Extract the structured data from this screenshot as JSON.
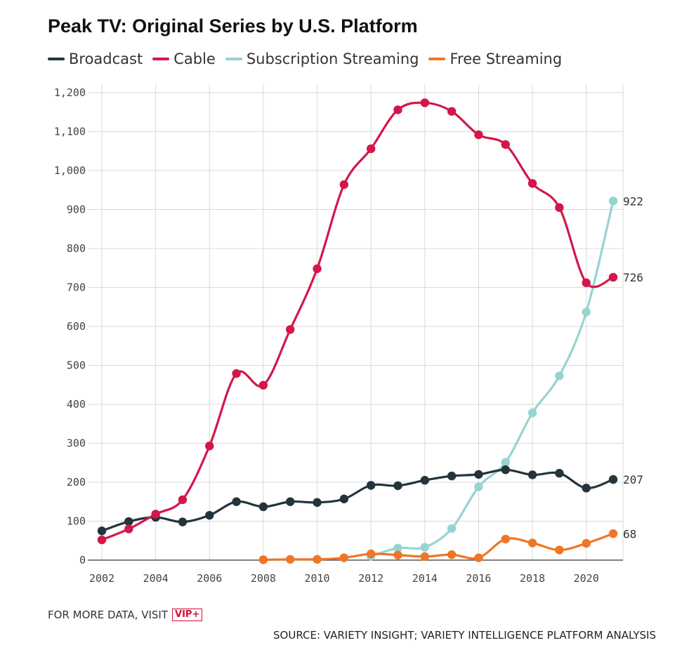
{
  "colors": {
    "broadcast": "#24343c",
    "cable": "#d3174a",
    "subscription": "#96d4d2",
    "free": "#ef7626",
    "grid": "#d9d9d9",
    "axis": "#333333"
  },
  "footer": {
    "more_data": "FOR MORE DATA, VISIT",
    "badge": "VIP+",
    "source": "SOURCE: VARIETY INSIGHT; VARIETY INTELLIGENCE PLATFORM ANALYSIS"
  },
  "chart_data": {
    "type": "line",
    "title": "Peak TV: Original Series by U.S. Platform",
    "xlabel": "",
    "ylabel": "",
    "xlim": [
      2002,
      2021
    ],
    "ylim": [
      0,
      1200
    ],
    "x_ticks": [
      "2002",
      "2004",
      "2006",
      "2008",
      "2010",
      "2012",
      "2014",
      "2016",
      "2018",
      "2020"
    ],
    "y_ticks": [
      "0",
      "100",
      "200",
      "300",
      "400",
      "500",
      "600",
      "700",
      "800",
      "900",
      "1,000",
      "1,100",
      "1,200"
    ],
    "grid": true,
    "legend_position": "top-left",
    "series": [
      {
        "name": "Broadcast",
        "color_key": "broadcast",
        "x": [
          2002,
          2003,
          2004,
          2005,
          2006,
          2007,
          2008,
          2009,
          2010,
          2011,
          2012,
          2013,
          2014,
          2015,
          2016,
          2017,
          2018,
          2019,
          2020,
          2021
        ],
        "values": [
          75,
          99,
          110,
          98,
          115,
          150,
          137,
          150,
          148,
          157,
          192,
          191,
          205,
          216,
          220,
          232,
          219,
          223,
          185,
          207
        ],
        "end_label": "207"
      },
      {
        "name": "Cable",
        "color_key": "cable",
        "x": [
          2002,
          2003,
          2004,
          2005,
          2006,
          2007,
          2008,
          2009,
          2010,
          2011,
          2012,
          2013,
          2014,
          2015,
          2016,
          2017,
          2018,
          2019,
          2020,
          2021
        ],
        "values": [
          52,
          80,
          118,
          155,
          293,
          479,
          449,
          592,
          748,
          964,
          1056,
          1156,
          1174,
          1152,
          1092,
          1067,
          967,
          905,
          712,
          726
        ],
        "end_label": "726"
      },
      {
        "name": "Subscription Streaming",
        "color_key": "subscription",
        "x": [
          2012,
          2013,
          2014,
          2015,
          2016,
          2017,
          2018,
          2019,
          2020,
          2021
        ],
        "values": [
          10,
          31,
          33,
          81,
          188,
          251,
          378,
          473,
          637,
          922
        ],
        "end_label": "922"
      },
      {
        "name": "Free Streaming",
        "color_key": "free",
        "x": [
          2008,
          2009,
          2010,
          2011,
          2012,
          2013,
          2014,
          2015,
          2016,
          2017,
          2018,
          2019,
          2020,
          2021
        ],
        "values": [
          1,
          2,
          2,
          6,
          16,
          13,
          9,
          14,
          6,
          54,
          44,
          26,
          43,
          68
        ],
        "end_label": "68"
      }
    ]
  }
}
